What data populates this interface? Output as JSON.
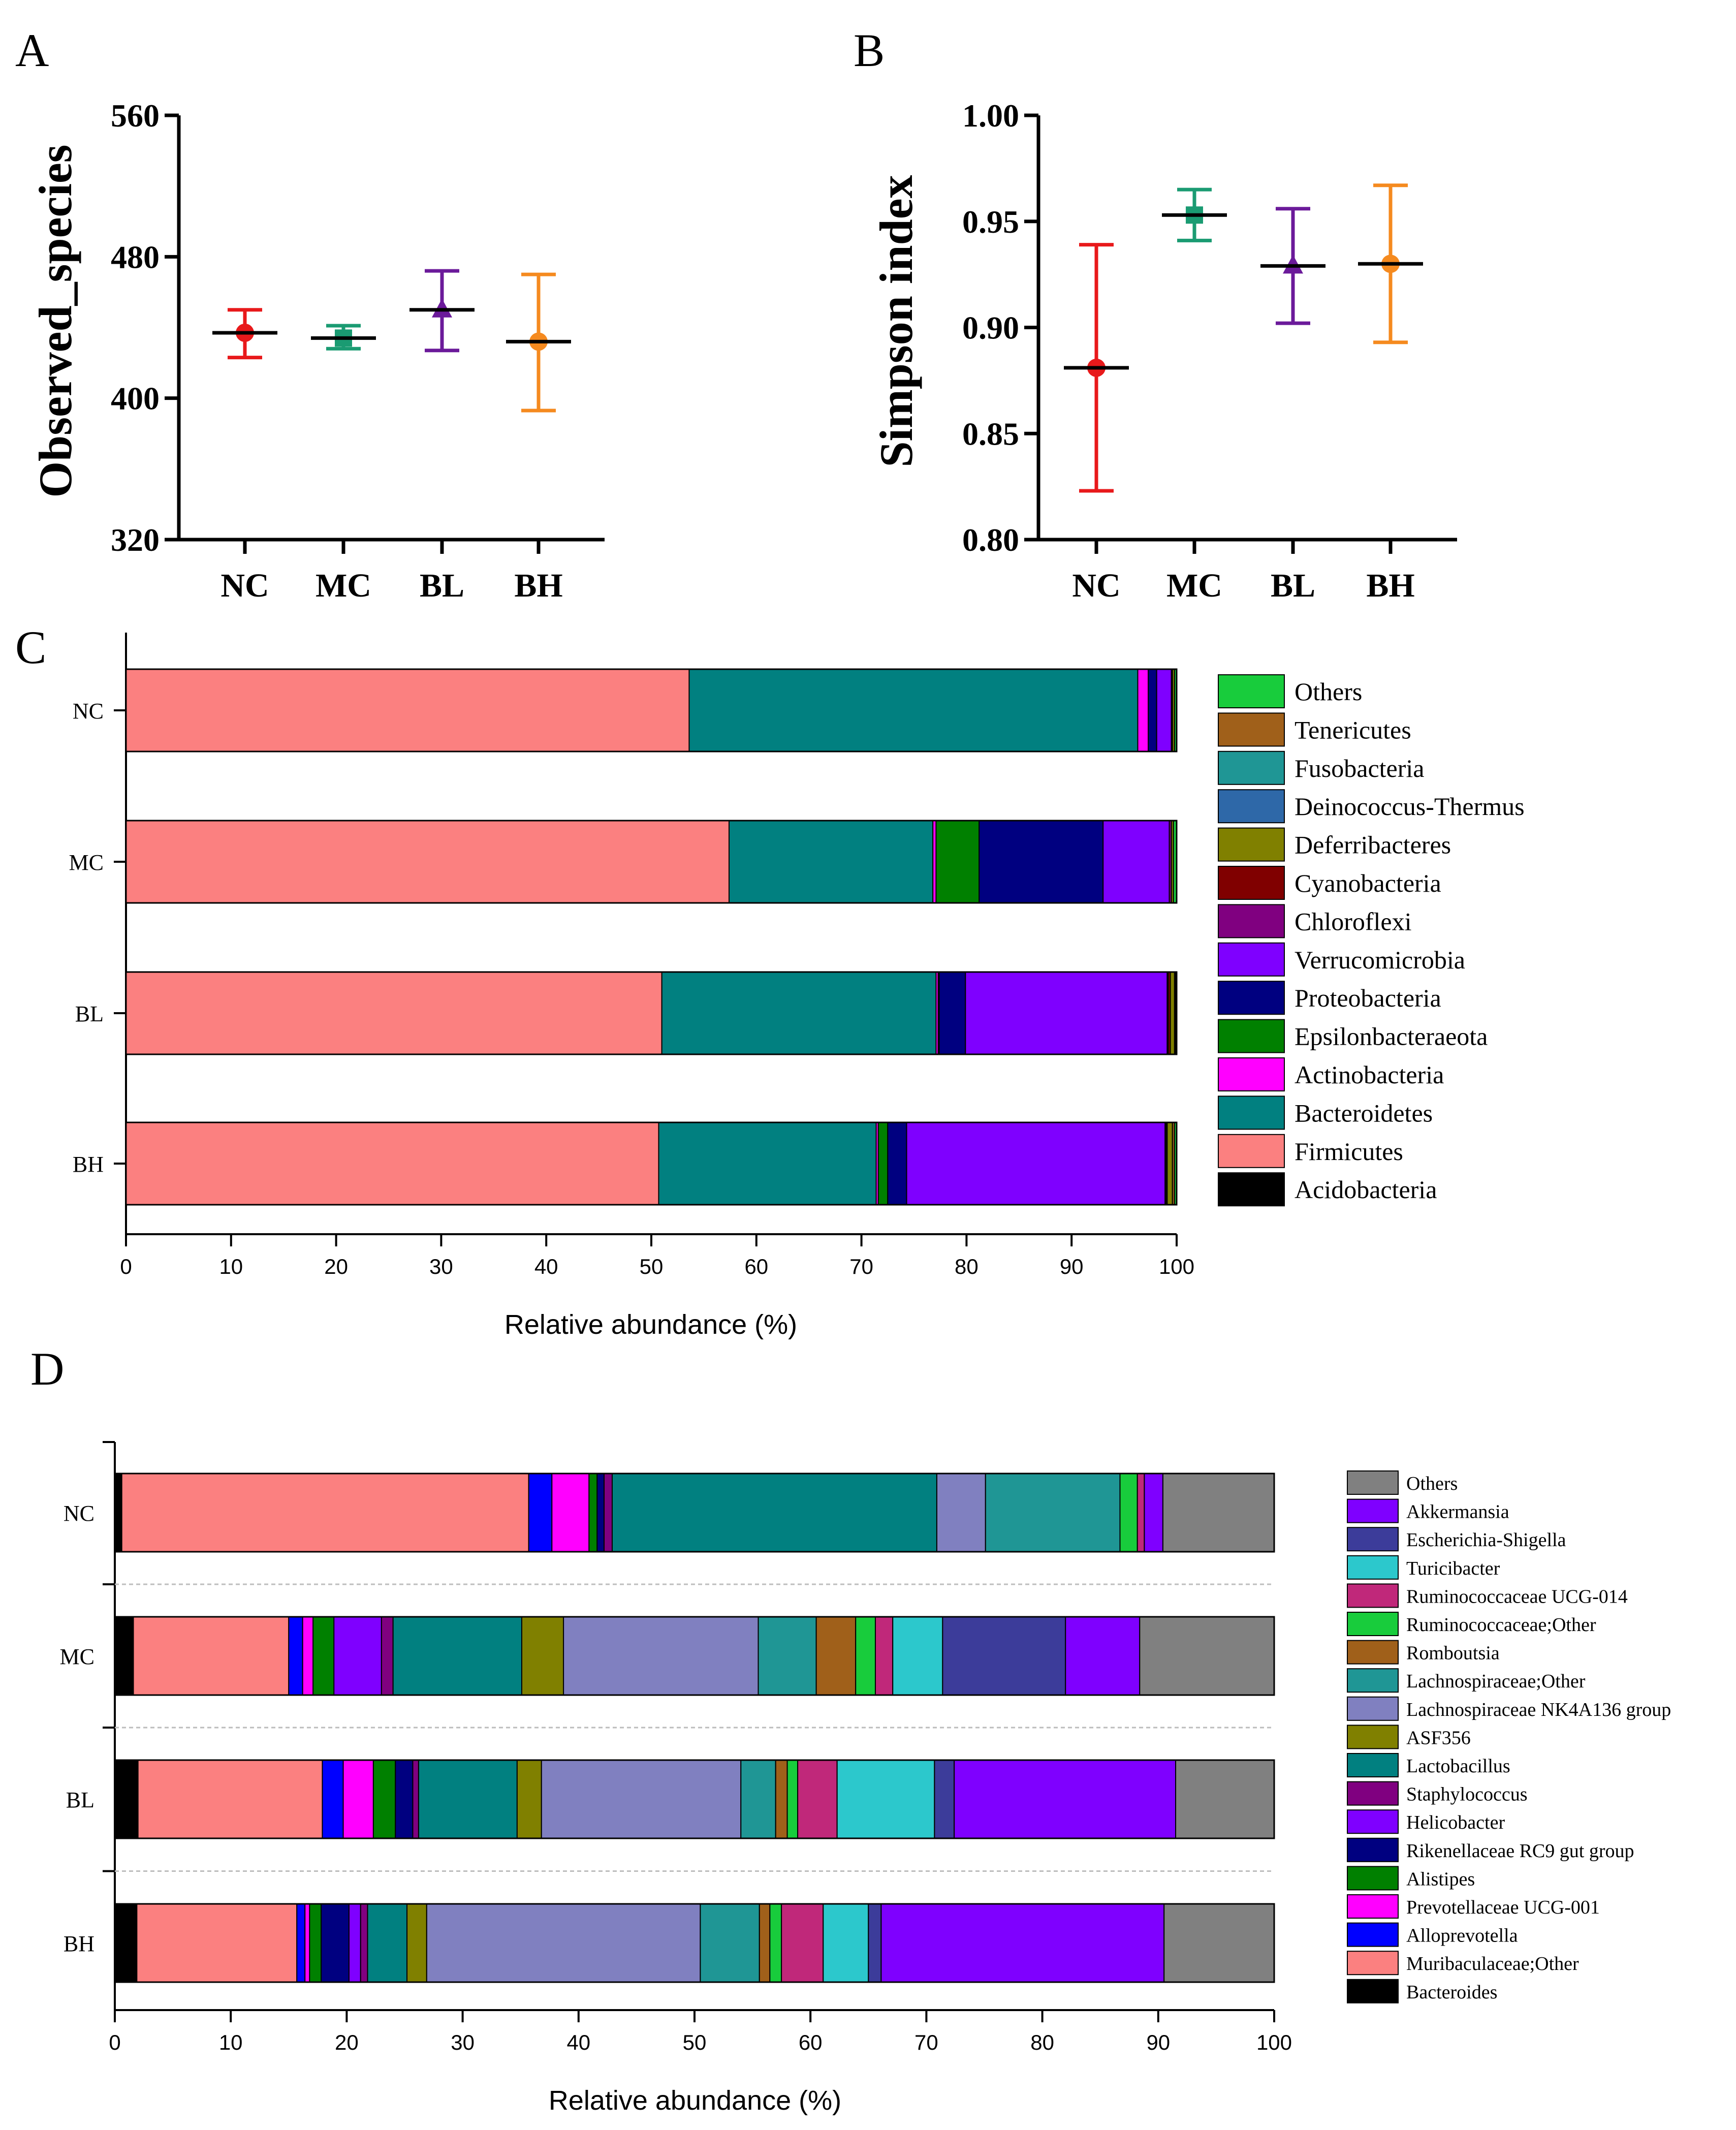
{
  "panel_letters": {
    "a": "A",
    "b": "B",
    "c": "C",
    "d": "D"
  },
  "chart_data": [
    {
      "id": "A",
      "type": "scatter",
      "title": "",
      "ylabel": "Observed_species",
      "xlabel": "",
      "ylim": [
        320,
        560
      ],
      "yticks": [
        "320",
        "400",
        "480",
        "560"
      ],
      "categories": [
        "NC",
        "MC",
        "BL",
        "BH"
      ],
      "series": [
        {
          "name": "NC",
          "marker": "circle",
          "color": "#e8191b",
          "mean": 437,
          "low": 423,
          "high": 450
        },
        {
          "name": "MC",
          "marker": "square",
          "color": "#1a9b72",
          "mean": 434,
          "low": 428,
          "high": 441
        },
        {
          "name": "BL",
          "marker": "triangle",
          "color": "#6b1a9a",
          "mean": 450,
          "low": 427,
          "high": 472
        },
        {
          "name": "BH",
          "marker": "circle",
          "color": "#f58a1f",
          "mean": 432,
          "low": 393,
          "high": 470
        }
      ]
    },
    {
      "id": "B",
      "type": "scatter",
      "title": "",
      "ylabel": "Simpson index",
      "xlabel": "",
      "ylim": [
        0.8,
        1.0
      ],
      "yticks": [
        "0.80",
        "0.85",
        "0.90",
        "0.95",
        "1.00"
      ],
      "categories": [
        "NC",
        "MC",
        "BL",
        "BH"
      ],
      "series": [
        {
          "name": "NC",
          "marker": "circle",
          "color": "#e8191b",
          "mean": 0.881,
          "low": 0.823,
          "high": 0.939
        },
        {
          "name": "MC",
          "marker": "square",
          "color": "#1a9b72",
          "mean": 0.953,
          "low": 0.941,
          "high": 0.965
        },
        {
          "name": "BL",
          "marker": "triangle",
          "color": "#6b1a9a",
          "mean": 0.929,
          "low": 0.902,
          "high": 0.956
        },
        {
          "name": "BH",
          "marker": "circle",
          "color": "#f58a1f",
          "mean": 0.93,
          "low": 0.893,
          "high": 0.967
        }
      ]
    },
    {
      "id": "C",
      "type": "bar",
      "orientation": "horizontal-stacked",
      "title": "",
      "xlabel": "Relative abundance (%)",
      "ylabel": "",
      "xlim": [
        0,
        100
      ],
      "xticks": [
        "0",
        "10",
        "20",
        "30",
        "40",
        "50",
        "60",
        "70",
        "80",
        "90",
        "100"
      ],
      "categories": [
        "NC",
        "MC",
        "BL",
        "BH"
      ],
      "legend_position": "right",
      "series": [
        {
          "name": "Acidobacteria",
          "color": "#000000",
          "values": [
            0.0,
            0.0,
            0.0,
            0.0
          ]
        },
        {
          "name": "Firmicutes",
          "color": "#fb8080",
          "values": [
            53.6,
            57.4,
            51.0,
            50.7
          ]
        },
        {
          "name": "Bacteroidetes",
          "color": "#018080",
          "values": [
            42.7,
            19.4,
            26.1,
            20.7
          ]
        },
        {
          "name": "Actinobacteria",
          "color": "#ff00ff",
          "values": [
            1.0,
            0.3,
            0.2,
            0.2
          ]
        },
        {
          "name": "Epsilonbacteraeota",
          "color": "#008000",
          "values": [
            0.0,
            4.1,
            0.1,
            0.9
          ]
        },
        {
          "name": "Proteobacteria",
          "color": "#000080",
          "values": [
            0.8,
            11.8,
            2.5,
            1.8
          ]
        },
        {
          "name": "Verrucomicrobia",
          "color": "#7f00ff",
          "values": [
            1.4,
            6.3,
            19.2,
            24.6
          ]
        },
        {
          "name": "Chloroflexi",
          "color": "#800080",
          "values": [
            0.1,
            0.2,
            0.1,
            0.1
          ]
        },
        {
          "name": "Cyanobacteria",
          "color": "#800000",
          "values": [
            0.0,
            0.0,
            0.2,
            0.1
          ]
        },
        {
          "name": "Deferribacteres",
          "color": "#808000",
          "values": [
            0.2,
            0.2,
            0.4,
            0.5
          ]
        },
        {
          "name": "Deinococcus-Thermus",
          "color": "#2e68a8",
          "values": [
            0.0,
            0.0,
            0.0,
            0.0
          ]
        },
        {
          "name": "Fusobacteria",
          "color": "#1f9695",
          "values": [
            0.0,
            0.0,
            0.0,
            0.0
          ]
        },
        {
          "name": "Tenericutes",
          "color": "#a0601a",
          "values": [
            0.0,
            0.0,
            0.1,
            0.2
          ]
        },
        {
          "name": "Others",
          "color": "#18cc3c",
          "values": [
            0.2,
            0.3,
            0.1,
            0.2
          ]
        }
      ]
    },
    {
      "id": "D",
      "type": "bar",
      "orientation": "horizontal-stacked",
      "title": "",
      "xlabel": "Relative abundance (%)",
      "ylabel": "",
      "xlim": [
        0,
        100
      ],
      "xticks": [
        "0",
        "10",
        "20",
        "30",
        "40",
        "50",
        "60",
        "70",
        "80",
        "90",
        "100"
      ],
      "categories": [
        "NC",
        "MC",
        "BL",
        "BH"
      ],
      "legend_position": "right",
      "series": [
        {
          "name": "Bacteroides",
          "color": "#000000",
          "values": [
            0.6,
            1.6,
            2.0,
            1.9
          ]
        },
        {
          "name": "Muribaculaceae;Other",
          "color": "#fb8080",
          "values": [
            35.1,
            13.4,
            15.9,
            13.8
          ]
        },
        {
          "name": "Alloprevotella",
          "color": "#0000ff",
          "values": [
            2.0,
            1.2,
            1.8,
            0.7
          ]
        },
        {
          "name": "Prevotellaceae UCG-001",
          "color": "#ff00ff",
          "values": [
            3.2,
            0.9,
            2.6,
            0.4
          ]
        },
        {
          "name": "Alistipes",
          "color": "#008000",
          "values": [
            0.7,
            1.8,
            1.9,
            1.0
          ]
        },
        {
          "name": "Rikenellaceae RC9 gut group",
          "color": "#000080",
          "values": [
            0.6,
            0.0,
            1.5,
            2.4
          ]
        },
        {
          "name": "Helicobacter",
          "color": "#7f00ff",
          "values": [
            0.0,
            4.1,
            0.0,
            1.0
          ]
        },
        {
          "name": "Staphylococcus",
          "color": "#800080",
          "values": [
            0.7,
            1.0,
            0.5,
            0.6
          ]
        },
        {
          "name": "Lactobacillus",
          "color": "#018080",
          "values": [
            28.0,
            11.1,
            8.5,
            3.4
          ]
        },
        {
          "name": "ASF356",
          "color": "#808000",
          "values": [
            0.0,
            3.6,
            2.1,
            1.7
          ]
        },
        {
          "name": "Lachnospiraceae NK4A136 group",
          "color": "#8080c0",
          "values": [
            4.2,
            16.8,
            17.2,
            23.6
          ]
        },
        {
          "name": "Lachnospiraceae;Other",
          "color": "#1f9695",
          "values": [
            11.6,
            5.0,
            3.0,
            5.1
          ]
        },
        {
          "name": "Romboutsia",
          "color": "#a0601a",
          "values": [
            0.0,
            3.4,
            1.0,
            0.9
          ]
        },
        {
          "name": "Ruminococcaceae;Other",
          "color": "#18cc3c",
          "values": [
            1.5,
            1.7,
            0.9,
            1.0
          ]
        },
        {
          "name": "Ruminococcaceae UCG-014",
          "color": "#c0287a",
          "values": [
            0.6,
            1.5,
            3.4,
            3.6
          ]
        },
        {
          "name": "Turicibacter",
          "color": "#2cc8cc",
          "values": [
            0.0,
            4.3,
            8.4,
            3.9
          ]
        },
        {
          "name": "Escherichia-Shigella",
          "color": "#3c3c9a",
          "values": [
            0.0,
            10.6,
            1.7,
            1.1
          ]
        },
        {
          "name": "Akkermansia",
          "color": "#7f00ff",
          "values": [
            1.6,
            6.4,
            19.1,
            24.4
          ]
        },
        {
          "name": "Others",
          "color": "#808080",
          "values": [
            9.6,
            11.6,
            8.5,
            9.5
          ]
        }
      ]
    }
  ]
}
